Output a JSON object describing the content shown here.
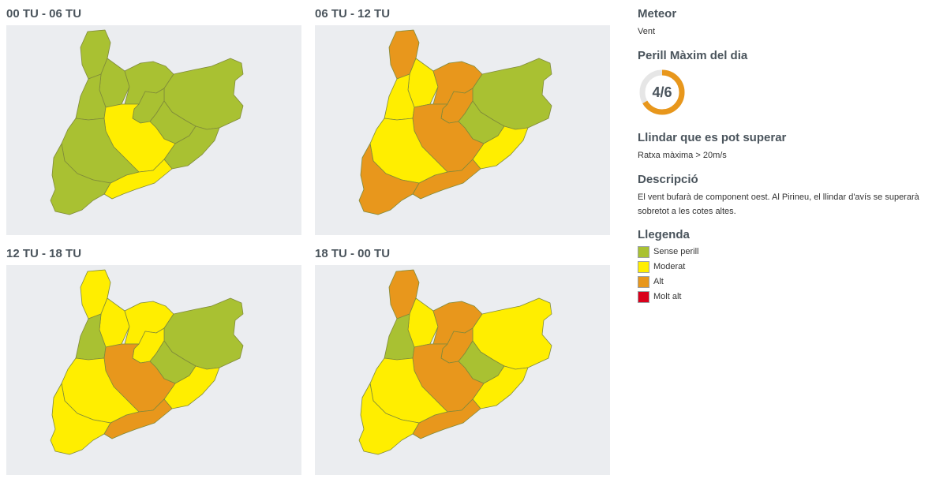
{
  "periods": [
    {
      "label": "00 TU - 06 TU"
    },
    {
      "label": "06 TU - 12 TU"
    },
    {
      "label": "12 TU - 18 TU"
    },
    {
      "label": "18 TU - 00 TU"
    }
  ],
  "map_zones": [
    "north-west",
    "north",
    "pyrenees-east",
    "north-east",
    "west",
    "central",
    "central-east",
    "east-coast",
    "south-central",
    "south-coast",
    "south-west",
    "delta"
  ],
  "map_levels": [
    {
      "north-west": "sense",
      "north": "sense",
      "pyrenees-east": "sense",
      "north-east": "sense",
      "west": "sense",
      "central": "sense",
      "central-east": "sense",
      "east-coast": "sense",
      "south-central": "moderat",
      "south-coast": "moderat",
      "south-west": "sense",
      "delta": "sense"
    },
    {
      "north-west": "alt",
      "north": "moderat",
      "pyrenees-east": "alt",
      "north-east": "sense",
      "west": "moderat",
      "central": "alt",
      "central-east": "sense",
      "east-coast": "moderat",
      "south-central": "alt",
      "south-coast": "alt",
      "south-west": "moderat",
      "delta": "alt"
    },
    {
      "north-west": "moderat",
      "north": "moderat",
      "pyrenees-east": "moderat",
      "north-east": "sense",
      "west": "sense",
      "central": "moderat",
      "central-east": "sense",
      "east-coast": "moderat",
      "south-central": "alt",
      "south-coast": "alt",
      "south-west": "moderat",
      "delta": "moderat"
    },
    {
      "north-west": "alt",
      "north": "moderat",
      "pyrenees-east": "alt",
      "north-east": "moderat",
      "west": "sense",
      "central": "alt",
      "central-east": "sense",
      "east-coast": "moderat",
      "south-central": "alt",
      "south-coast": "alt",
      "south-west": "moderat",
      "delta": "moderat"
    }
  ],
  "colors": {
    "sense": "#a9c132",
    "moderat": "#ffee00",
    "alt": "#e8971c",
    "molt_alt": "#d9001b",
    "map_bg": "#ebedf0",
    "border": "#7f8a3a",
    "gauge_track": "#e6e6e6",
    "gauge_fill": "#e8971c"
  },
  "sidebar": {
    "meteor_title": "Meteor",
    "meteor_value": "Vent",
    "perill_title": "Perill Màxim del dia",
    "perill_value": "4/6",
    "perill_level": 4,
    "perill_max": 6,
    "llindar_title": "Llindar que es pot superar",
    "llindar_value": "Ratxa màxima > 20m/s",
    "descripcio_title": "Descripció",
    "descripcio_text": "El vent bufarà de component oest. Al Pirineu, el llindar d'avís se superarà sobretot a les cotes altes.",
    "llegenda_title": "Llegenda",
    "legend": [
      {
        "label": "Sense perill",
        "color": "#a9c132"
      },
      {
        "label": "Moderat",
        "color": "#ffee00"
      },
      {
        "label": "Alt",
        "color": "#e8971c"
      },
      {
        "label": "Molt alt",
        "color": "#d9001b"
      }
    ]
  }
}
